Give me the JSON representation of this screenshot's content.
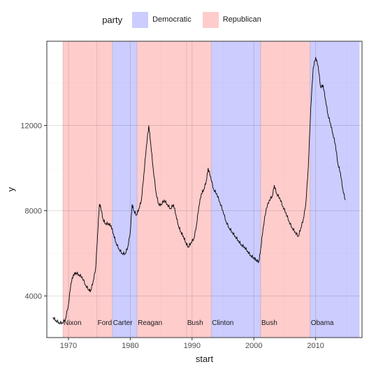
{
  "chart_data": {
    "type": "line",
    "title": "",
    "xlabel": "start",
    "ylabel": "y",
    "xlim": [
      1966.5,
      2017.5
    ],
    "ylim": [
      2050,
      15950
    ],
    "x_ticks": [
      1970,
      1980,
      1990,
      2000,
      2010
    ],
    "y_ticks": [
      4000,
      8000,
      12000
    ],
    "grid": true,
    "legend": {
      "title": "party",
      "placement": "top",
      "entries": [
        {
          "label": "Democratic",
          "color": "#ccccff"
        },
        {
          "label": "Republican",
          "color": "#ffcccc"
        }
      ]
    },
    "presidents": [
      {
        "name": "Nixon",
        "start": 1969.1,
        "end": 1974.6,
        "party": "Republican"
      },
      {
        "name": "Ford",
        "start": 1974.6,
        "end": 1977.1,
        "party": "Republican"
      },
      {
        "name": "Carter",
        "start": 1977.1,
        "end": 1981.1,
        "party": "Democratic"
      },
      {
        "name": "Reagan",
        "start": 1981.1,
        "end": 1989.1,
        "party": "Republican"
      },
      {
        "name": "Bush",
        "start": 1989.1,
        "end": 1993.1,
        "party": "Republican"
      },
      {
        "name": "Clinton",
        "start": 1993.1,
        "end": 2001.1,
        "party": "Democratic"
      },
      {
        "name": "Bush",
        "start": 2001.1,
        "end": 2009.1,
        "party": "Republican"
      },
      {
        "name": "Obama",
        "start": 2009.1,
        "end": 2017.1,
        "party": "Democratic"
      }
    ],
    "series": [
      {
        "color": "#000000",
        "points": [
          [
            1967.5,
            3000
          ],
          [
            1968.0,
            2850
          ],
          [
            1968.5,
            2750
          ],
          [
            1969.0,
            2750
          ],
          [
            1969.5,
            2900
          ],
          [
            1970.0,
            3600
          ],
          [
            1970.4,
            4600
          ],
          [
            1970.8,
            5000
          ],
          [
            1971.2,
            5100
          ],
          [
            1971.7,
            5000
          ],
          [
            1972.2,
            4900
          ],
          [
            1972.8,
            4500
          ],
          [
            1973.3,
            4300
          ],
          [
            1973.6,
            4250
          ],
          [
            1974.0,
            4700
          ],
          [
            1974.4,
            5300
          ],
          [
            1974.7,
            6800
          ],
          [
            1975.0,
            8300
          ],
          [
            1975.2,
            8200
          ],
          [
            1975.6,
            7600
          ],
          [
            1976.0,
            7400
          ],
          [
            1976.5,
            7400
          ],
          [
            1976.9,
            7300
          ],
          [
            1977.3,
            6900
          ],
          [
            1977.7,
            6500
          ],
          [
            1978.2,
            6200
          ],
          [
            1978.7,
            6000
          ],
          [
            1979.2,
            6000
          ],
          [
            1979.6,
            6300
          ],
          [
            1980.0,
            7000
          ],
          [
            1980.3,
            8300
          ],
          [
            1980.6,
            8000
          ],
          [
            1981.0,
            7800
          ],
          [
            1981.4,
            8100
          ],
          [
            1981.8,
            8500
          ],
          [
            1982.2,
            9700
          ],
          [
            1982.6,
            11000
          ],
          [
            1983.0,
            12000
          ],
          [
            1983.3,
            11200
          ],
          [
            1983.7,
            10000
          ],
          [
            1984.2,
            8800
          ],
          [
            1984.6,
            8300
          ],
          [
            1985.0,
            8300
          ],
          [
            1985.5,
            8500
          ],
          [
            1986.0,
            8300
          ],
          [
            1986.5,
            8100
          ],
          [
            1987.0,
            8300
          ],
          [
            1987.4,
            7800
          ],
          [
            1987.8,
            7300
          ],
          [
            1988.2,
            7000
          ],
          [
            1988.6,
            6800
          ],
          [
            1989.0,
            6500
          ],
          [
            1989.4,
            6300
          ],
          [
            1989.8,
            6500
          ],
          [
            1990.3,
            6700
          ],
          [
            1990.7,
            7300
          ],
          [
            1991.1,
            8200
          ],
          [
            1991.5,
            8800
          ],
          [
            1991.9,
            9000
          ],
          [
            1992.3,
            9400
          ],
          [
            1992.6,
            10000
          ],
          [
            1993.0,
            9600
          ],
          [
            1993.5,
            9000
          ],
          [
            1994.0,
            8800
          ],
          [
            1994.5,
            8400
          ],
          [
            1995.0,
            8000
          ],
          [
            1995.5,
            7500
          ],
          [
            1996.0,
            7200
          ],
          [
            1996.5,
            7000
          ],
          [
            1997.0,
            6800
          ],
          [
            1997.5,
            6600
          ],
          [
            1998.0,
            6400
          ],
          [
            1998.5,
            6300
          ],
          [
            1999.0,
            6100
          ],
          [
            1999.5,
            5900
          ],
          [
            2000.0,
            5800
          ],
          [
            2000.4,
            5700
          ],
          [
            2000.8,
            5600
          ],
          [
            2001.1,
            6200
          ],
          [
            2001.5,
            7200
          ],
          [
            2002.0,
            8100
          ],
          [
            2002.5,
            8500
          ],
          [
            2003.0,
            8700
          ],
          [
            2003.3,
            9200
          ],
          [
            2003.7,
            8800
          ],
          [
            2004.2,
            8600
          ],
          [
            2004.7,
            8200
          ],
          [
            2005.2,
            7900
          ],
          [
            2005.7,
            7500
          ],
          [
            2006.2,
            7200
          ],
          [
            2006.7,
            7000
          ],
          [
            2007.2,
            6800
          ],
          [
            2007.6,
            7200
          ],
          [
            2008.0,
            7600
          ],
          [
            2008.4,
            8300
          ],
          [
            2008.8,
            10000
          ],
          [
            2009.2,
            12800
          ],
          [
            2009.6,
            14700
          ],
          [
            2010.0,
            15200
          ],
          [
            2010.4,
            14800
          ],
          [
            2010.8,
            13800
          ],
          [
            2011.2,
            13900
          ],
          [
            2011.6,
            13200
          ],
          [
            2012.0,
            12500
          ],
          [
            2012.4,
            12100
          ],
          [
            2012.8,
            11600
          ],
          [
            2013.2,
            11100
          ],
          [
            2013.6,
            10200
          ],
          [
            2014.0,
            9800
          ],
          [
            2014.4,
            9000
          ],
          [
            2014.8,
            8500
          ]
        ]
      }
    ]
  }
}
